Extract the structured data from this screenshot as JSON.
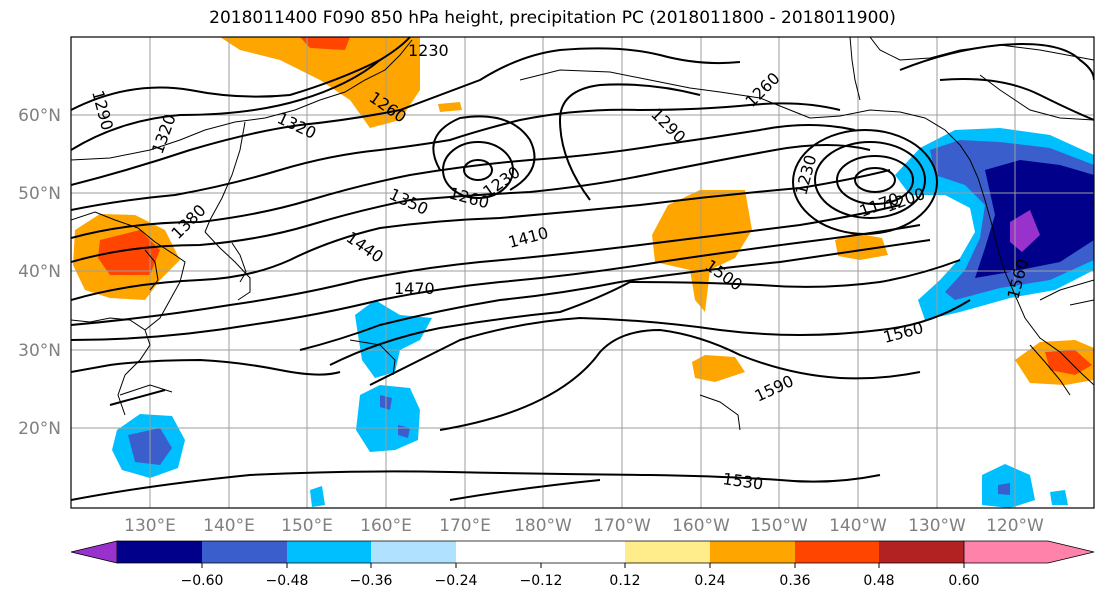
{
  "title": "2018011400 F090 850 hPa height, precipitation PC (2018011800 - 2018011900)",
  "lat_labels": [
    "60°N",
    "50°N",
    "40°N",
    "30°N",
    "20°N"
  ],
  "lon_labels": [
    "130°E",
    "140°E",
    "150°E",
    "160°E",
    "170°E",
    "180°W",
    "170°W",
    "160°W",
    "150°W",
    "140°W",
    "130°W",
    "120°W"
  ],
  "contour_labels": [
    "1230",
    "1260",
    "1290",
    "1320",
    "1320",
    "1380",
    "1350",
    "1260",
    "1230",
    "1290",
    "1260",
    "1230",
    "1170",
    "1200",
    "1410",
    "1440",
    "1470",
    "1500",
    "1560",
    "1560",
    "1590",
    "1530"
  ],
  "colorbar": {
    "colors": [
      "#9932cc",
      "#00008b",
      "#3a5fcd",
      "#00bfff",
      "#b0e2ff",
      "#ffffff",
      "#ffffff",
      "#ffec8b",
      "#ffa500",
      "#ff4500",
      "#b22222",
      "#ff82ab"
    ],
    "tick_labels": [
      "−0.60",
      "−0.48",
      "−0.36",
      "−0.24",
      "−0.12",
      "0.12",
      "0.24",
      "0.36",
      "0.48",
      "0.60"
    ]
  }
}
